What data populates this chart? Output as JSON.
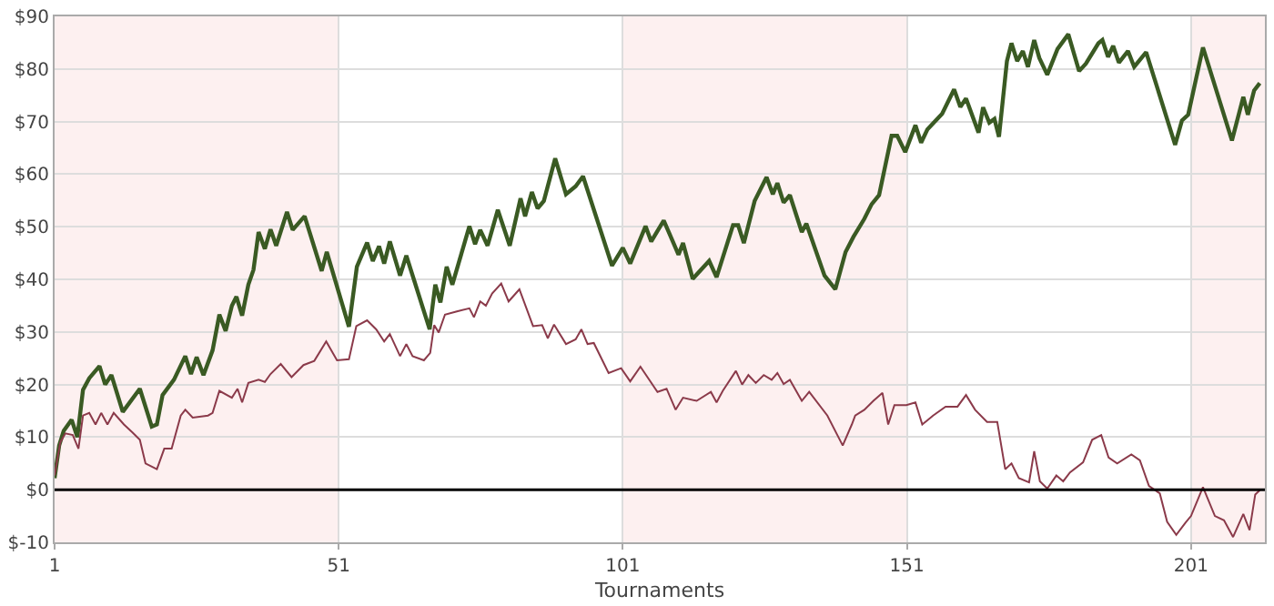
{
  "chart_data": {
    "type": "line",
    "xlabel": "Tournaments",
    "xlim": [
      1,
      214
    ],
    "xticks": [
      1,
      51,
      101,
      151,
      201
    ],
    "ylim": [
      -10,
      90
    ],
    "yticks": [
      {
        "value": -10,
        "label": "$-10"
      },
      {
        "value": 0,
        "label": "$0"
      },
      {
        "value": 10,
        "label": "$10"
      },
      {
        "value": 20,
        "label": "$20"
      },
      {
        "value": 30,
        "label": "$30"
      },
      {
        "value": 40,
        "label": "$40"
      },
      {
        "value": 50,
        "label": "$50"
      },
      {
        "value": 60,
        "label": "$60"
      },
      {
        "value": 70,
        "label": "$70"
      },
      {
        "value": 80,
        "label": "$80"
      },
      {
        "value": 90,
        "label": "$90"
      }
    ],
    "grid": true,
    "marker": "none",
    "ref_lines": [
      {
        "axis": "y",
        "value": 0,
        "color": "#000000"
      }
    ],
    "bands": [
      {
        "axis": "x",
        "from": 1,
        "to": 51,
        "color": "#fdf0f0"
      },
      {
        "axis": "x",
        "from": 101,
        "to": 151,
        "color": "#fdf0f0"
      },
      {
        "axis": "x",
        "from": 201,
        "to": 214,
        "color": "#fdf0f0"
      }
    ],
    "series": [
      {
        "color": "#3a5a23",
        "x": [
          1,
          1.8,
          2.6,
          4,
          5,
          6,
          7.1,
          8.9,
          9.9,
          11,
          13,
          16,
          18.1,
          19,
          20,
          22,
          24,
          25,
          26,
          27.2,
          28.8,
          30,
          31.1,
          32.2,
          33,
          34,
          35.1,
          36,
          36.9,
          38,
          39,
          40,
          41.9,
          42.9,
          45,
          48,
          48.9,
          52.8,
          54.2,
          56,
          57,
          58.1,
          59,
          60,
          61.8,
          62.9,
          67,
          68,
          68.9,
          70,
          71,
          74,
          75,
          75.9,
          77.2,
          79,
          81.1,
          83,
          83.8,
          85,
          86,
          87.1,
          89.1,
          91,
          92.7,
          94,
          99.1,
          101,
          102.3,
          105,
          106,
          108.2,
          110.8,
          111.6,
          113.3,
          116.2,
          117.5,
          120.4,
          121.3,
          122.3,
          124.2,
          126.3,
          127.4,
          128.2,
          129.3,
          130.4,
          132.5,
          133.3,
          136.5,
          138.4,
          140.2,
          141.6,
          143.5,
          144.8,
          146.1,
          148.3,
          149.3,
          150.7,
          152.5,
          153.5,
          154.6,
          157.2,
          159.3,
          160.4,
          161.4,
          163.6,
          164.4,
          165.5,
          166.4,
          167.2,
          168.6,
          169.4,
          170.4,
          171.4,
          172.3,
          173.4,
          174.3,
          175.7,
          177.5,
          179.4,
          181.3,
          182.5,
          184.7,
          185.4,
          186.4,
          187.3,
          188.3,
          189.9,
          191,
          193.1,
          198.2,
          199.4,
          200.5,
          203.1,
          208.2,
          210.2,
          211,
          212.1,
          213.1
        ],
        "values": [
          2.2,
          8.4,
          11.2,
          13.3,
          10,
          19,
          21.2,
          23.5,
          20,
          21.8,
          14.8,
          19.2,
          12,
          12.4,
          18,
          20.9,
          25.4,
          22,
          25.2,
          21.8,
          26.5,
          33.3,
          30.2,
          35,
          36.7,
          33.1,
          39,
          41.8,
          49,
          45.8,
          49.5,
          46.4,
          52.8,
          49.4,
          52,
          41.6,
          45.2,
          31,
          42.4,
          47,
          43.5,
          46.3,
          43,
          47.2,
          40.7,
          44.5,
          30.5,
          39,
          35.6,
          42.4,
          39,
          50.1,
          46.7,
          49.4,
          46.4,
          53.2,
          46.4,
          55.4,
          52,
          56.6,
          53.5,
          54.9,
          63,
          56.2,
          57.7,
          59.6,
          42.6,
          46,
          43,
          50.1,
          47.2,
          51.2,
          44.7,
          46.9,
          40.1,
          43.5,
          40.4,
          50.3,
          50.3,
          46.9,
          54.9,
          59.4,
          56.2,
          58.3,
          54.6,
          56,
          49,
          50.6,
          40.7,
          38.1,
          45.2,
          48.1,
          51.5,
          54.3,
          56,
          67.3,
          67.3,
          64.2,
          69.3,
          66,
          68.5,
          71.5,
          76.1,
          72.8,
          74.4,
          67.9,
          72.7,
          69.8,
          70.5,
          67.1,
          81.5,
          84.9,
          81.5,
          83.4,
          80.4,
          85.5,
          82.1,
          78.9,
          83.8,
          86.6,
          79.6,
          81,
          84.9,
          85.5,
          82.3,
          84.4,
          81.2,
          83.4,
          80.4,
          83.2,
          65.6,
          70.2,
          71.3,
          84.1,
          66.4,
          74.7,
          71.3,
          75.9,
          77.3
        ]
      },
      {
        "color": "#8b3a4a",
        "x": [
          1,
          2,
          2.9,
          4.2,
          5.2,
          6,
          7.1,
          8.2,
          9.2,
          10.3,
          11.4,
          13.2,
          14.7,
          16,
          17,
          19,
          20.3,
          21.6,
          23.2,
          24,
          25.3,
          28,
          28.8,
          30,
          32.2,
          33.2,
          34,
          35.1,
          36.9,
          38,
          39,
          40.8,
          42.7,
          44.8,
          46.7,
          48.8,
          50.7,
          52.8,
          54.1,
          56,
          57.6,
          59,
          60,
          61.8,
          62.9,
          64,
          66,
          67.1,
          67.8,
          68.6,
          69.7,
          71.8,
          74,
          74.8,
          75.9,
          76.9,
          78,
          79.6,
          80.9,
          82.8,
          85.2,
          86.8,
          87.8,
          88.9,
          91,
          92.7,
          93.7,
          94.8,
          95.9,
          98.5,
          100.7,
          102.3,
          104.1,
          107.1,
          108.7,
          110.3,
          111.6,
          114,
          116.5,
          117.5,
          118.6,
          120.9,
          122,
          123.1,
          124.4,
          125.8,
          127.2,
          128.2,
          129.3,
          130.4,
          132.5,
          133.8,
          137,
          139.7,
          141.3,
          141.9,
          143.5,
          145.1,
          146.7,
          147.7,
          148.8,
          150.9,
          152.5,
          153.7,
          155.6,
          157.8,
          159.9,
          161.4,
          163,
          165.1,
          166.9,
          168.3,
          169.4,
          170.7,
          172.5,
          173.4,
          174.4,
          175.7,
          177.3,
          178.5,
          179.7,
          182,
          183.6,
          185.2,
          186.5,
          188,
          190.5,
          192,
          193.6,
          195.5,
          196.8,
          198.4,
          200,
          201,
          203.1,
          205.2,
          206.8,
          208.4,
          210.2,
          211.3,
          212.3,
          213.1
        ],
        "values": [
          2.7,
          9,
          10.7,
          10.4,
          7.8,
          14.1,
          14.6,
          12.4,
          14.6,
          12.4,
          14.6,
          12.4,
          10.9,
          9.5,
          5,
          3.9,
          7.8,
          7.8,
          14.1,
          15.2,
          13.7,
          14.1,
          14.6,
          18.8,
          17.5,
          19.2,
          16.6,
          20.3,
          20.9,
          20.5,
          22,
          23.9,
          21.4,
          23.7,
          24.5,
          28.2,
          24.6,
          24.8,
          31.1,
          32.2,
          30.5,
          28.2,
          29.6,
          25.4,
          27.7,
          25.4,
          24.6,
          26,
          31.3,
          29.9,
          33.3,
          33.9,
          34.5,
          32.8,
          35.8,
          35,
          37.3,
          39.2,
          35.8,
          38.1,
          31.1,
          31.3,
          28.8,
          31.4,
          27.7,
          28.6,
          30.5,
          27.7,
          27.9,
          22.2,
          23.1,
          20.6,
          23.4,
          18.6,
          19.2,
          15.2,
          17.5,
          16.9,
          18.6,
          16.6,
          18.8,
          22.6,
          20,
          21.8,
          20.3,
          21.8,
          20.9,
          22.2,
          20.1,
          20.9,
          16.9,
          18.6,
          14.1,
          8.4,
          12.4,
          14.1,
          15.2,
          16.9,
          18.4,
          12.4,
          16.1,
          16.1,
          16.6,
          12.4,
          14.1,
          15.8,
          15.8,
          18,
          15.2,
          12.9,
          12.9,
          3.9,
          5,
          2.2,
          1.4,
          7.3,
          1.6,
          0.2,
          2.7,
          1.6,
          3.3,
          5.2,
          9.5,
          10.4,
          6.1,
          5,
          6.7,
          5.6,
          0.7,
          -0.7,
          -6.1,
          -8.6,
          -6.3,
          -5,
          0.5,
          -5,
          -5.8,
          -9,
          -4.6,
          -7.7,
          -0.9,
          -0.1
        ]
      }
    ]
  }
}
